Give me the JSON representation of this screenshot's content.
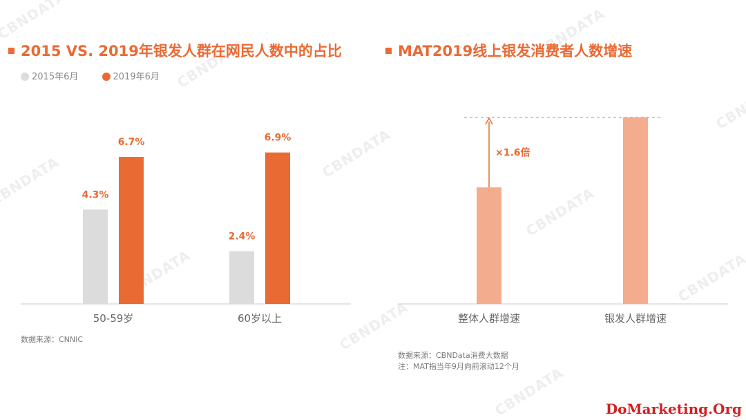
{
  "left_title": "2015 VS. 2019年银发人群在网民人数中的占比",
  "right_title": "MAT2019线上银发消费者人数增速",
  "legend": [
    {
      "label": "2015年6月",
      "color": "#dcdcdc"
    },
    {
      "label": "2019年6月",
      "color": "#ea6a34"
    }
  ],
  "chart_data": [
    {
      "type": "bar",
      "title": "2015 VS. 2019年银发人群在网民人数中的占比",
      "categories": [
        "50-59岁",
        "60岁以上"
      ],
      "series": [
        {
          "name": "2015年6月",
          "values": [
            4.3,
            2.4
          ],
          "labels": [
            "4.3%",
            "2.4%"
          ],
          "color": "#dcdcdc"
        },
        {
          "name": "2019年6月",
          "values": [
            6.7,
            6.9
          ],
          "labels": [
            "6.7%",
            "6.9%"
          ],
          "color": "#ea6a34"
        }
      ],
      "ylim": [
        0,
        7.3
      ],
      "grid": false,
      "legend_position": "top-left"
    },
    {
      "type": "bar",
      "title": "MAT2019线上银发消费者人数增速",
      "categories": [
        "整体人群增速",
        "银发人群增速"
      ],
      "values": [
        1.0,
        1.6
      ],
      "color": "#f4ac8f",
      "annotation": "×1.6倍",
      "grid": false
    }
  ],
  "source_left": "数据来源：CNNIC",
  "source_right_1": "数据来源：CBNData消费大数据",
  "source_right_2": "注：MAT指当年9月向前滚动12个月",
  "watermark": "CBNDATA",
  "footer_brand": "DoMarketing.Org"
}
